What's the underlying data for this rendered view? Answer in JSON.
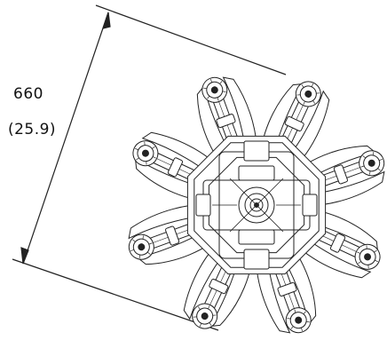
{
  "dimension": {
    "value": "660",
    "inches": "(25.9)"
  },
  "drone": {
    "arm_count": 8,
    "view": "top"
  },
  "colors": {
    "line": "#222222",
    "fill": "#ffffff"
  }
}
